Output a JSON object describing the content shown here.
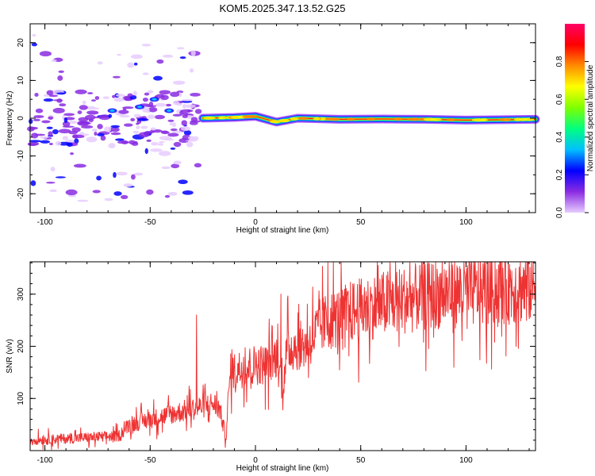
{
  "title": "KOM5.2025.347.13.52.G25",
  "chart_data": [
    {
      "type": "heatmap",
      "xlabel": "Height of straight line (km)",
      "ylabel": "Frequency (Hz)",
      "xlim": [
        -107,
        133
      ],
      "ylim": [
        -25,
        25
      ],
      "xticks": [
        -100,
        -50,
        0,
        50,
        100
      ],
      "yticks": [
        -20,
        -10,
        0,
        10,
        20
      ],
      "colorbar": {
        "label": "Normalized spectral amplitude",
        "range": [
          0,
          1
        ],
        "ticks": [
          "0.0",
          "0.2",
          "0.4",
          "0.6",
          "0.8"
        ],
        "colors": [
          "#e6ccff",
          "#8a2be2",
          "#0000ff",
          "#00bfff",
          "#00ff7f",
          "#7fff00",
          "#ffff00",
          "#ff8c00",
          "#ff0000",
          "#ff0066"
        ]
      },
      "ridge": [
        {
          "x": -25,
          "f": 0.0
        },
        {
          "x": -10,
          "f": 0.2
        },
        {
          "x": 0,
          "f": 0.5
        },
        {
          "x": 10,
          "f": -1.0
        },
        {
          "x": 20,
          "f": 0.0
        },
        {
          "x": 40,
          "f": -0.3
        },
        {
          "x": 60,
          "f": -0.2
        },
        {
          "x": 80,
          "f": -0.3
        },
        {
          "x": 100,
          "f": -0.5
        },
        {
          "x": 133,
          "f": -0.3
        }
      ],
      "noise_region": {
        "x": [
          -107,
          -27
        ],
        "f": [
          -23,
          24
        ]
      }
    },
    {
      "type": "line",
      "xlabel": "Height of straight line (km)",
      "ylabel": "SNR (v/v)",
      "xlim": [
        -107,
        133
      ],
      "ylim": [
        0,
        362
      ],
      "xticks": [
        -100,
        -50,
        0,
        50,
        100
      ],
      "yticks": [
        100,
        200,
        300
      ],
      "series": [
        {
          "color": "#ee3333",
          "trend": [
            {
              "x": -107,
              "y": 20
            },
            {
              "x": -80,
              "y": 25
            },
            {
              "x": -65,
              "y": 28
            },
            {
              "x": -60,
              "y": 50
            },
            {
              "x": -50,
              "y": 60
            },
            {
              "x": -40,
              "y": 70
            },
            {
              "x": -30,
              "y": 80
            },
            {
              "x": -20,
              "y": 90
            },
            {
              "x": -17,
              "y": 80
            },
            {
              "x": -14,
              "y": 25
            },
            {
              "x": -12,
              "y": 150
            },
            {
              "x": -5,
              "y": 160
            },
            {
              "x": 0,
              "y": 165
            },
            {
              "x": 5,
              "y": 165
            },
            {
              "x": 10,
              "y": 180
            },
            {
              "x": 13,
              "y": 120
            },
            {
              "x": 15,
              "y": 195
            },
            {
              "x": 20,
              "y": 200
            },
            {
              "x": 25,
              "y": 205
            },
            {
              "x": 30,
              "y": 235
            },
            {
              "x": 35,
              "y": 250
            },
            {
              "x": 40,
              "y": 255
            },
            {
              "x": 45,
              "y": 265
            },
            {
              "x": 55,
              "y": 275
            },
            {
              "x": 65,
              "y": 285
            },
            {
              "x": 75,
              "y": 292
            },
            {
              "x": 85,
              "y": 300
            },
            {
              "x": 95,
              "y": 303
            },
            {
              "x": 105,
              "y": 306
            },
            {
              "x": 115,
              "y": 310
            },
            {
              "x": 125,
              "y": 313
            },
            {
              "x": 133,
              "y": 315
            }
          ],
          "spikes": [
            {
              "x": 34.5,
              "y": 362
            },
            {
              "x": 13,
              "y": 78
            },
            {
              "x": 39,
              "y": 185
            },
            {
              "x": 86,
              "y": 240
            },
            {
              "x": 96,
              "y": 350
            },
            {
              "x": 12,
              "y": 300
            },
            {
              "x": -28,
              "y": 260
            }
          ]
        }
      ]
    }
  ]
}
